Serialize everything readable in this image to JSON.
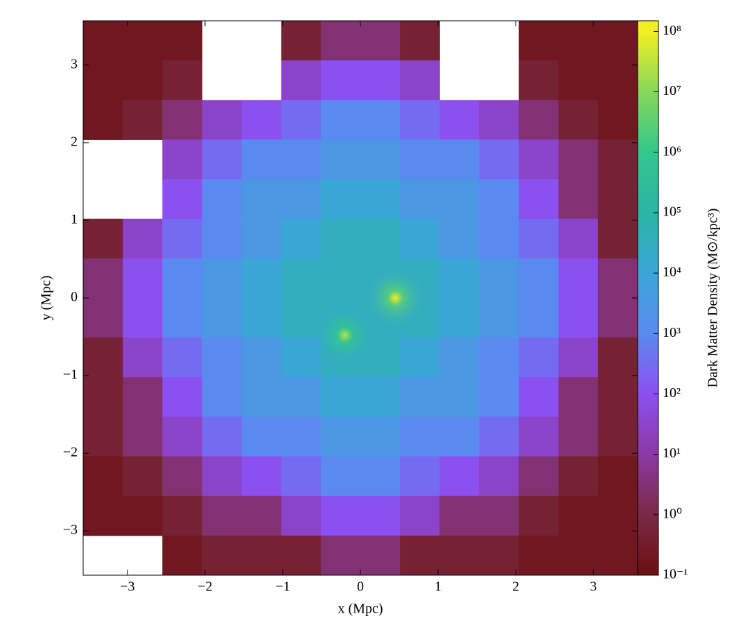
{
  "chart_data": {
    "type": "heatmap",
    "xlabel": "x (Mpc)",
    "ylabel": "y (Mpc)",
    "colorbar_label": "Dark Matter Density (M⊙/kpc³)",
    "xlim": [
      -3.57,
      3.57
    ],
    "ylim": [
      -3.57,
      3.57
    ],
    "xticks": [
      {
        "value": -3,
        "label": "−3"
      },
      {
        "value": -2,
        "label": "−2"
      },
      {
        "value": -1,
        "label": "−1"
      },
      0,
      1,
      2,
      3
    ],
    "yticks": [
      {
        "value": -3,
        "label": "−3"
      },
      {
        "value": -2,
        "label": "−2"
      },
      {
        "value": -1,
        "label": "−1"
      },
      0,
      1,
      2,
      3
    ],
    "log_color": true,
    "clim": [
      0.1,
      150000000
    ],
    "cticks": [
      {
        "value": 0.1,
        "label": "10⁻¹"
      },
      {
        "value": 1,
        "label": "10⁰"
      },
      {
        "value": 10,
        "label": "10¹"
      },
      {
        "value": 100,
        "label": "10²"
      },
      {
        "value": 1000,
        "label": "10³"
      },
      {
        "value": 10000,
        "label": "10⁴"
      },
      {
        "value": 100000,
        "label": "10⁵"
      },
      {
        "value": 1000000,
        "label": "10⁶"
      },
      {
        "value": 10000000,
        "label": "10⁷"
      },
      {
        "value": 100000000,
        "label": "10⁸"
      }
    ],
    "colormap": [
      {
        "value": 0.1,
        "color": "#6b0f10"
      },
      {
        "value": 1,
        "color": "#7a2a45"
      },
      {
        "value": 10,
        "color": "#8a3aa5"
      },
      {
        "value": 100,
        "color": "#8c4ff0"
      },
      {
        "value": 1000,
        "color": "#5a8af0"
      },
      {
        "value": 10000,
        "color": "#3aa6d6"
      },
      {
        "value": 100000,
        "color": "#29b4a6"
      },
      {
        "value": 1000000,
        "color": "#33c78c"
      },
      {
        "value": 10000000,
        "color": "#86d85a"
      },
      {
        "value": 100000000,
        "color": "#f2f022"
      }
    ],
    "z": [
      [
        0.2,
        0.2,
        0.2,
        null,
        null,
        0.5,
        3,
        3,
        0.5,
        null,
        null,
        0.2,
        0.2,
        0.2
      ],
      [
        0.2,
        0.2,
        0.5,
        null,
        null,
        30,
        100,
        100,
        30,
        null,
        null,
        0.5,
        0.2,
        0.2
      ],
      [
        0.2,
        0.5,
        3,
        30,
        100,
        300,
        1000,
        1000,
        300,
        100,
        30,
        3,
        0.5,
        0.2
      ],
      [
        null,
        null,
        30,
        300,
        1000,
        1000,
        3000,
        3000,
        1000,
        1000,
        300,
        30,
        3,
        0.5
      ],
      [
        null,
        null,
        100,
        1000,
        3000,
        3000,
        10000,
        10000,
        3000,
        3000,
        1000,
        100,
        3,
        0.5
      ],
      [
        0.5,
        30,
        300,
        1000,
        3000,
        10000,
        30000,
        30000,
        10000,
        3000,
        1000,
        300,
        30,
        0.5
      ],
      [
        3,
        100,
        1000,
        3000,
        10000,
        30000,
        30000,
        30000,
        30000,
        10000,
        3000,
        1000,
        100,
        3
      ],
      [
        3,
        100,
        1000,
        3000,
        10000,
        30000,
        30000,
        30000,
        30000,
        10000,
        3000,
        1000,
        100,
        3
      ],
      [
        0.5,
        30,
        300,
        1000,
        3000,
        10000,
        30000,
        30000,
        10000,
        3000,
        1000,
        300,
        30,
        0.5
      ],
      [
        0.5,
        3,
        100,
        1000,
        3000,
        3000,
        10000,
        10000,
        3000,
        3000,
        1000,
        100,
        3,
        0.5
      ],
      [
        0.5,
        3,
        30,
        300,
        1000,
        1000,
        3000,
        3000,
        1000,
        1000,
        300,
        30,
        3,
        0.5
      ],
      [
        0.2,
        0.5,
        3,
        30,
        100,
        300,
        1000,
        1000,
        300,
        100,
        30,
        3,
        0.5,
        0.2
      ],
      [
        0.2,
        0.2,
        0.5,
        3,
        3,
        30,
        100,
        100,
        30,
        3,
        3,
        0.5,
        0.2,
        0.2
      ],
      [
        null,
        null,
        0.2,
        0.5,
        0.5,
        0.5,
        3,
        3,
        0.5,
        0.5,
        0.5,
        0.2,
        0.2,
        0.2
      ]
    ],
    "peaks": [
      {
        "x": 0.45,
        "y": 0,
        "value": 100000000
      },
      {
        "x": -0.2,
        "y": -0.48,
        "value": 30000000
      }
    ]
  }
}
